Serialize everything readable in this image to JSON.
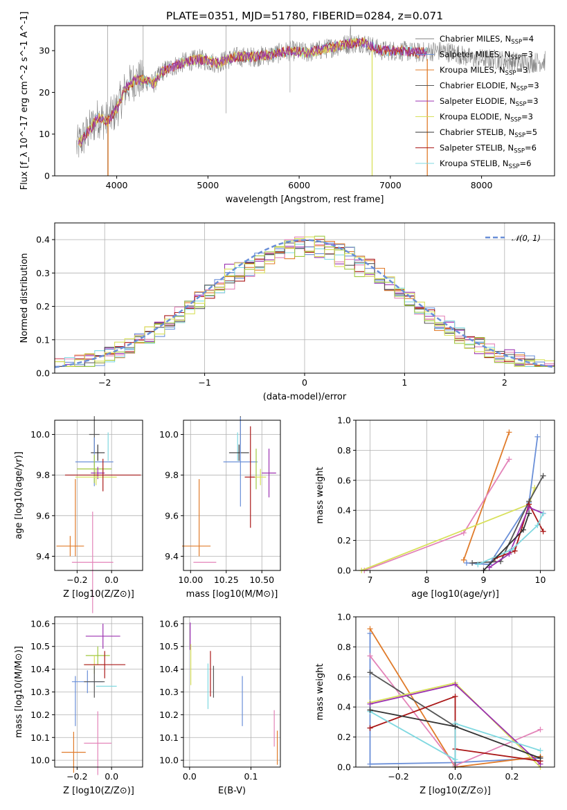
{
  "figure": {
    "title": "PLATE=0351, MJD=51780, FIBERID=0284, z=0.071"
  },
  "colors": {
    "series": [
      "#808080",
      "#3f3f3f",
      "#e07b2a",
      "#5a5a5a",
      "#9b30b0",
      "#d8e05a",
      "#333333",
      "#aa1717",
      "#7fd8e0"
    ],
    "accent": [
      "#6a8fd8",
      "#e07b2a",
      "#e383b8",
      "#9b30b0",
      "#aa1717",
      "#7fd8e0",
      "#555555",
      "#a0c840",
      "#d8e05a"
    ]
  },
  "chart_data": [
    {
      "id": "spectrum",
      "type": "line",
      "title": "PLATE=0351, MJD=51780, FIBERID=0284, z=0.071",
      "xlabel": "wavelength [Angstrom, rest frame]",
      "ylabel": "Flux [f_λ 10^-17 erg cm^-2 s^-1 A^-1]",
      "xlim": [
        3320,
        8800
      ],
      "ylim": [
        0,
        36
      ],
      "xticks": [
        "4000",
        "5000",
        "6000",
        "7000",
        "8000"
      ],
      "yticks": [
        "0",
        "10",
        "20",
        "30"
      ],
      "grid": false,
      "legend_position": "upper right",
      "legend": [
        {
          "label": "Chabrier MILES, N",
          "sub": "SSP",
          "suffix": "=4"
        },
        {
          "label": "Salpeter MILES, N",
          "sub": "SSP",
          "suffix": "=3"
        },
        {
          "label": "Kroupa MILES, N",
          "sub": "SSP",
          "suffix": "=3"
        },
        {
          "label": "Chabrier ELODIE, N",
          "sub": "SSP",
          "suffix": "=3"
        },
        {
          "label": "Salpeter ELODIE, N",
          "sub": "SSP",
          "suffix": "=3"
        },
        {
          "label": "Kroupa ELODIE, N",
          "sub": "SSP",
          "suffix": "=3"
        },
        {
          "label": "Chabrier STELIB, N",
          "sub": "SSP",
          "suffix": "=5"
        },
        {
          "label": "Salpeter STELIB, N",
          "sub": "SSP",
          "suffix": "=6"
        },
        {
          "label": "Kroupa STELIB, N",
          "sub": "SSP",
          "suffix": "=6"
        }
      ],
      "continuum": {
        "x": [
          3560,
          3700,
          3800,
          3900,
          4000,
          4100,
          4200,
          4300,
          4400,
          4500,
          4700,
          4900,
          5100,
          5300,
          5500,
          5700,
          5900,
          6100,
          6300,
          6500,
          6700,
          6900,
          7100,
          7300,
          7500,
          7700,
          7900,
          8100,
          8300,
          8500,
          8700
        ],
        "y": [
          7,
          11,
          14,
          13,
          16,
          21,
          23,
          23,
          22,
          25,
          27,
          28,
          27,
          28.5,
          28.5,
          29,
          30,
          29.5,
          30.5,
          31.5,
          32,
          30,
          30,
          29.5,
          30,
          29.5,
          28,
          28,
          27.5,
          27,
          27.5
        ]
      }
    },
    {
      "id": "residuals",
      "type": "line",
      "xlabel": "(data-model)/error",
      "ylabel": "Normed distribution",
      "xlim": [
        -2.5,
        2.5
      ],
      "ylim": [
        0,
        0.45
      ],
      "xticks": [
        "−2",
        "−1",
        "0",
        "1",
        "2"
      ],
      "yticks": [
        "0.0",
        "0.1",
        "0.2",
        "0.3",
        "0.4"
      ],
      "grid": true,
      "legend_position": "upper right",
      "legend": [
        {
          "label": "𝒩(0, 1)"
        }
      ],
      "normal_curve": {
        "mu": 0,
        "sigma": 1
      }
    },
    {
      "id": "z_vs_age",
      "type": "scatter",
      "xlabel": "Z [log10(Z/Z⊙)]",
      "ylabel": "age  [log10(age/yr)]",
      "xlim": [
        -0.33,
        0.18
      ],
      "ylim": [
        9.33,
        10.07
      ],
      "xticks": [
        "−0.2",
        "0.0"
      ],
      "yticks": [
        "9.4",
        "9.6",
        "9.8",
        "10.0"
      ],
      "grid": true,
      "points": [
        {
          "x": -0.1,
          "y": 10.0,
          "xerr": 0.03,
          "yerr": 0.09,
          "color": "#555555"
        },
        {
          "x": -0.02,
          "y": 9.94,
          "xerr": 0.0,
          "yerr": 0.07,
          "color": "#7fd8e0"
        },
        {
          "x": -0.08,
          "y": 9.91,
          "xerr": 0.04,
          "yerr": 0.04,
          "color": "#333333"
        },
        {
          "x": -0.1,
          "y": 9.865,
          "xerr": 0.11,
          "yerr": 0.12,
          "color": "#6a8fd8"
        },
        {
          "x": -0.1,
          "y": 9.83,
          "xerr": 0.1,
          "yerr": 0.07,
          "color": "#a0c840"
        },
        {
          "x": -0.08,
          "y": 9.81,
          "xerr": 0.04,
          "yerr": 0.03,
          "color": "#9b30b0"
        },
        {
          "x": -0.09,
          "y": 9.79,
          "xerr": 0.12,
          "yerr": 0.04,
          "color": "#d8e05a"
        },
        {
          "x": -0.05,
          "y": 9.8,
          "xerr": 0.22,
          "yerr": 0.08,
          "color": "#aa1717"
        },
        {
          "x": -0.24,
          "y": 9.45,
          "xerr": 0.08,
          "yerr": 0.05,
          "color": "#e07b2a"
        },
        {
          "x": -0.21,
          "y": 9.59,
          "xerr": 0.0,
          "yerr": 0.19,
          "color": "#e07b2a"
        },
        {
          "x": -0.11,
          "y": 9.37,
          "xerr": 0.12,
          "yerr": 0.25,
          "color": "#e383b8"
        }
      ]
    },
    {
      "id": "mass_vs_age",
      "type": "scatter",
      "xlabel": "mass [log10(M/M⊙)]",
      "ylabel": "",
      "xlim": [
        9.95,
        10.63
      ],
      "ylim": [
        9.33,
        10.07
      ],
      "xticks": [
        "10.00",
        "10.25",
        "10.50"
      ],
      "yticks": [
        "9.4",
        "9.6",
        "9.8",
        "10.0"
      ],
      "grid": true,
      "points": [
        {
          "x": 10.35,
          "y": 10.0,
          "xerr": 0.0,
          "yerr": 0.09,
          "color": "#555555"
        },
        {
          "x": 10.33,
          "y": 9.94,
          "xerr": 0.0,
          "yerr": 0.07,
          "color": "#7fd8e0"
        },
        {
          "x": 10.34,
          "y": 9.91,
          "xerr": 0.07,
          "yerr": 0.04,
          "color": "#333333"
        },
        {
          "x": 10.35,
          "y": 9.865,
          "xerr": 0.12,
          "yerr": 0.22,
          "color": "#6a8fd8"
        },
        {
          "x": 10.46,
          "y": 9.83,
          "xerr": 0.0,
          "yerr": 0.1,
          "color": "#a0c840"
        },
        {
          "x": 10.55,
          "y": 9.81,
          "xerr": 0.05,
          "yerr": 0.12,
          "color": "#9b30b0"
        },
        {
          "x": 10.42,
          "y": 9.79,
          "xerr": 0.04,
          "yerr": 0.25,
          "color": "#aa1717"
        },
        {
          "x": 10.49,
          "y": 9.79,
          "xerr": 0.04,
          "yerr": 0.04,
          "color": "#d8e05a"
        },
        {
          "x": 10.04,
          "y": 9.45,
          "xerr": 0.1,
          "yerr": 0.0,
          "color": "#e07b2a"
        },
        {
          "x": 10.06,
          "y": 9.59,
          "xerr": 0.0,
          "yerr": 0.19,
          "color": "#e07b2a"
        },
        {
          "x": 10.1,
          "y": 9.37,
          "xerr": 0.08,
          "yerr": 0.0,
          "color": "#e383b8"
        }
      ]
    },
    {
      "id": "age_weights",
      "type": "line",
      "xlabel": "age  [log10(age/yr)]",
      "ylabel": "mass weight",
      "xlim": [
        6.75,
        10.25
      ],
      "ylim": [
        0,
        1.0
      ],
      "xticks": [
        "7",
        "8",
        "9",
        "10"
      ],
      "yticks": [
        "0.0",
        "0.2",
        "0.4",
        "0.6",
        "0.8",
        "1.0"
      ],
      "grid": true,
      "series": [
        {
          "x": [
            8.65,
            9.45
          ],
          "y": [
            0.07,
            0.92
          ],
          "color": "#e07b2a"
        },
        {
          "x": [
            6.9,
            8.65,
            9.45
          ],
          "y": [
            0.0,
            0.25,
            0.74
          ],
          "color": "#e383b8"
        },
        {
          "x": [
            6.85,
            9.8,
            9.9
          ],
          "y": [
            0.0,
            0.44,
            0.55
          ],
          "color": "#d8e05a"
        },
        {
          "x": [
            8.7,
            9.1,
            9.8,
            9.95
          ],
          "y": [
            0.05,
            0.04,
            0.45,
            0.89
          ],
          "color": "#6a8fd8"
        },
        {
          "x": [
            8.8,
            9.3,
            9.8,
            10.05
          ],
          "y": [
            0.05,
            0.06,
            0.46,
            0.63
          ],
          "color": "#555555"
        },
        {
          "x": [
            9.2,
            9.55,
            9.8,
            10.05
          ],
          "y": [
            0.08,
            0.13,
            0.44,
            0.26
          ],
          "color": "#aa1717"
        },
        {
          "x": [
            9.1,
            9.45,
            9.8,
            10.05
          ],
          "y": [
            0.02,
            0.11,
            0.42,
            0.38
          ],
          "color": "#9b30b0"
        },
        {
          "x": [
            8.9,
            9.5,
            9.95,
            10.05
          ],
          "y": [
            0.04,
            0.14,
            0.3,
            0.38
          ],
          "color": "#7fd8e0"
        },
        {
          "x": [
            9.0,
            9.7,
            9.8
          ],
          "y": [
            0.0,
            0.27,
            0.38
          ],
          "color": "#333333"
        }
      ]
    },
    {
      "id": "z_vs_mass",
      "type": "scatter",
      "xlabel": "Z [log10(Z/Z⊙)]",
      "ylabel": "mass [log10(M/M⊙)]",
      "xlim": [
        -0.33,
        0.18
      ],
      "ylim": [
        9.97,
        10.63
      ],
      "xticks": [
        "−0.2",
        "0.0"
      ],
      "yticks": [
        "10.0",
        "10.1",
        "10.2",
        "10.3",
        "10.4",
        "10.5",
        "10.6"
      ],
      "grid": true,
      "points": [
        {
          "x": -0.05,
          "y": 10.545,
          "xerr": 0.1,
          "yerr": 0.055,
          "color": "#9b30b0"
        },
        {
          "x": -0.08,
          "y": 10.46,
          "xerr": 0.07,
          "yerr": 0.04,
          "color": "#a0c840"
        },
        {
          "x": -0.1,
          "y": 10.42,
          "xerr": 0.06,
          "yerr": 0.04,
          "color": "#d8e05a"
        },
        {
          "x": -0.04,
          "y": 10.42,
          "xerr": 0.12,
          "yerr": 0.06,
          "color": "#aa1717"
        },
        {
          "x": -0.14,
          "y": 10.345,
          "xerr": 0.09,
          "yerr": 0.05,
          "color": "#6a8fd8"
        },
        {
          "x": -0.1,
          "y": 10.345,
          "xerr": 0.06,
          "yerr": 0.07,
          "color": "#555555"
        },
        {
          "x": -0.03,
          "y": 10.325,
          "xerr": 0.06,
          "yerr": 0.0,
          "color": "#7fd8e0"
        },
        {
          "x": -0.21,
          "y": 10.26,
          "xerr": 0.0,
          "yerr": 0.11,
          "color": "#6a8fd8"
        },
        {
          "x": -0.08,
          "y": 10.075,
          "xerr": 0.08,
          "yerr": 0.14,
          "color": "#e383b8"
        },
        {
          "x": -0.22,
          "y": 10.035,
          "xerr": 0.07,
          "yerr": 0.09,
          "color": "#e07b2a"
        }
      ]
    },
    {
      "id": "ebv_vs_mass",
      "type": "scatter",
      "xlabel": "E(B-V)",
      "ylabel": "",
      "xlim": [
        -0.01,
        0.148
      ],
      "ylim": [
        9.97,
        10.63
      ],
      "xticks": [
        "0.0",
        "0.1"
      ],
      "yticks": [
        "10.0",
        "10.1",
        "10.2",
        "10.3",
        "10.4",
        "10.5",
        "10.6"
      ],
      "grid": true,
      "points": [
        {
          "x": 0.001,
          "y": 10.545,
          "xerr": 0,
          "yerr": 0.06,
          "color": "#9b30b0"
        },
        {
          "x": 0.002,
          "y": 10.42,
          "xerr": 0,
          "yerr": 0.09,
          "color": "#d8e05a"
        },
        {
          "x": 0.03,
          "y": 10.325,
          "xerr": 0,
          "yerr": 0.1,
          "color": "#7fd8e0"
        },
        {
          "x": 0.034,
          "y": 10.38,
          "xerr": 0,
          "yerr": 0.1,
          "color": "#aa1717"
        },
        {
          "x": 0.039,
          "y": 10.345,
          "xerr": 0,
          "yerr": 0.07,
          "color": "#555555"
        },
        {
          "x": 0.086,
          "y": 10.26,
          "xerr": 0,
          "yerr": 0.11,
          "color": "#6a8fd8"
        },
        {
          "x": 0.138,
          "y": 10.14,
          "xerr": 0,
          "yerr": 0.08,
          "color": "#e383b8"
        },
        {
          "x": 0.143,
          "y": 10.055,
          "xerr": 0,
          "yerr": 0.075,
          "color": "#e07b2a"
        }
      ]
    },
    {
      "id": "z_weights",
      "type": "line",
      "xlabel": "Z [log10(Z/Z⊙)]",
      "ylabel": "mass weight",
      "xlim": [
        -0.35,
        0.35
      ],
      "ylim": [
        0,
        1.0
      ],
      "xticks": [
        "−0.2",
        "0.0",
        "0.2"
      ],
      "yticks": [
        "0.0",
        "0.2",
        "0.4",
        "0.6",
        "0.8",
        "1.0"
      ],
      "grid": true,
      "series": [
        {
          "x": [
            -0.3,
            -0.3,
            0.0,
            0.3
          ],
          "y": [
            0.89,
            0.02,
            0.03,
            0.06
          ],
          "color": "#6a8fd8"
        },
        {
          "x": [
            -0.3,
            0.0,
            0.3
          ],
          "y": [
            0.92,
            0.0,
            0.07
          ],
          "color": "#e07b2a"
        },
        {
          "x": [
            -0.3,
            0.0,
            0.3
          ],
          "y": [
            0.74,
            0.01,
            0.25
          ],
          "color": "#e383b8"
        },
        {
          "x": [
            -0.3,
            0.0,
            0.0
          ],
          "y": [
            0.63,
            0.27,
            0.0
          ],
          "color": "#555555"
        },
        {
          "x": [
            -0.3,
            0.0,
            0.3
          ],
          "y": [
            0.43,
            0.56,
            0.0
          ],
          "color": "#d8e05a"
        },
        {
          "x": [
            -0.3,
            0.0,
            0.3
          ],
          "y": [
            0.42,
            0.55,
            0.02
          ],
          "color": "#9b30b0"
        },
        {
          "x": [
            -0.3,
            0.0,
            0.0,
            0.3
          ],
          "y": [
            0.26,
            0.47,
            0.12,
            0.04
          ],
          "color": "#aa1717"
        },
        {
          "x": [
            -0.3,
            0.0,
            0.0,
            0.3
          ],
          "y": [
            0.37,
            0.05,
            0.29,
            0.11
          ],
          "color": "#7fd8e0"
        },
        {
          "x": [
            -0.3,
            0.0,
            0.3
          ],
          "y": [
            0.38,
            0.27,
            0.06
          ],
          "color": "#333333"
        }
      ]
    }
  ]
}
